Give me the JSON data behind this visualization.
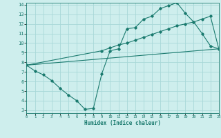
{
  "xlabel": "Humidex (Indice chaleur)",
  "ylabel": "",
  "bg_color": "#ceeeed",
  "grid_color": "#a8d8d8",
  "line_color": "#1a7a6e",
  "xlim": [
    0,
    23
  ],
  "ylim": [
    3,
    14
  ],
  "xticks": [
    0,
    1,
    2,
    3,
    4,
    5,
    6,
    7,
    8,
    9,
    10,
    11,
    12,
    13,
    14,
    15,
    16,
    17,
    18,
    19,
    20,
    21,
    22,
    23
  ],
  "yticks": [
    3,
    4,
    5,
    6,
    7,
    8,
    9,
    10,
    11,
    12,
    13,
    14
  ],
  "line1_x": [
    0,
    1,
    2,
    3,
    4,
    5,
    6,
    7,
    8,
    9,
    10,
    11,
    12,
    13,
    14,
    15,
    16,
    17,
    18,
    19,
    20,
    21,
    22,
    23
  ],
  "line1_y": [
    7.7,
    7.1,
    6.7,
    6.1,
    5.3,
    4.6,
    4.0,
    3.1,
    3.2,
    6.8,
    9.2,
    9.4,
    11.5,
    11.6,
    12.5,
    12.8,
    13.6,
    13.9,
    14.2,
    13.1,
    12.2,
    11.0,
    9.7,
    9.4
  ],
  "line2_x": [
    0,
    9,
    10,
    11,
    12,
    13,
    14,
    15,
    16,
    17,
    18,
    19,
    20,
    21,
    22,
    23
  ],
  "line2_y": [
    7.7,
    9.2,
    9.5,
    9.8,
    10.0,
    10.3,
    10.6,
    10.9,
    11.2,
    11.5,
    11.8,
    12.0,
    12.2,
    12.5,
    12.8,
    9.4
  ],
  "line3_x": [
    0,
    23
  ],
  "line3_y": [
    7.7,
    9.4
  ]
}
